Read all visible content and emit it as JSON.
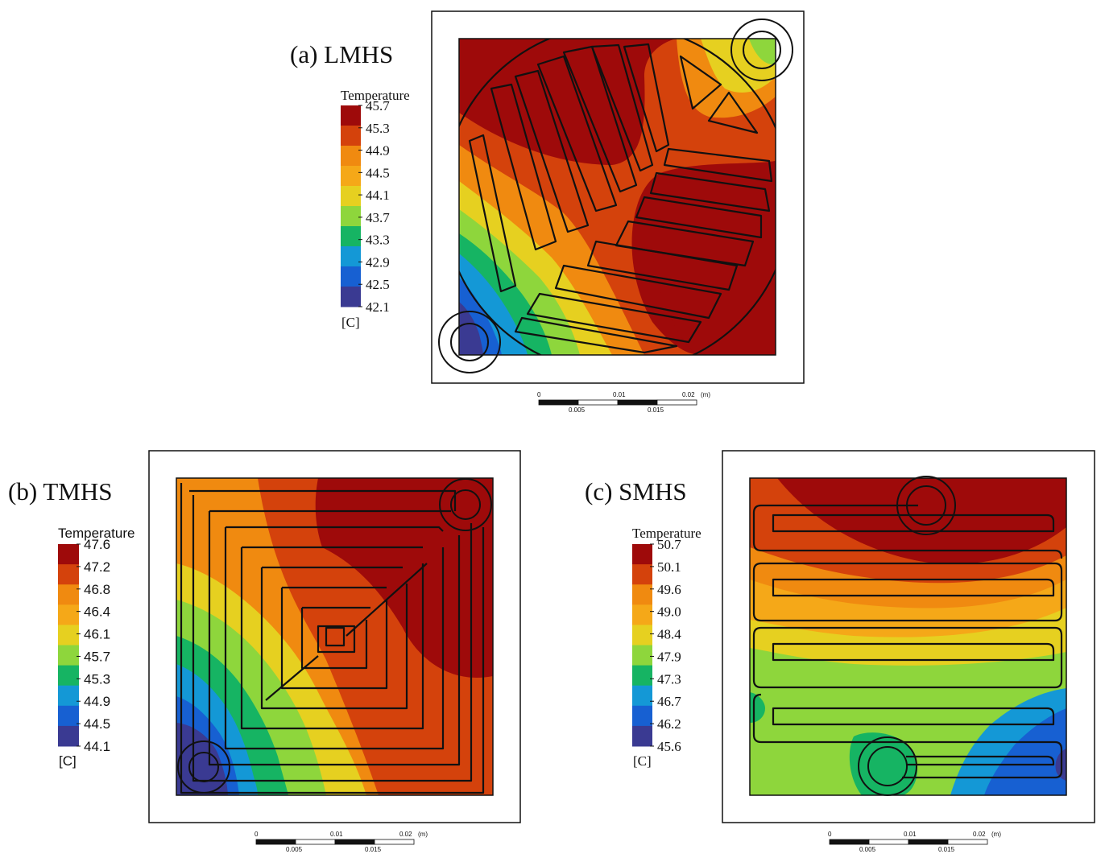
{
  "panels": [
    {
      "id": "a",
      "title": "(a) LMHS",
      "colorbar": {
        "title": "Temperature",
        "unit": "[C]",
        "ticks": [
          "45.7",
          "45.3",
          "44.9",
          "44.5",
          "44.1",
          "43.7",
          "43.3",
          "42.9",
          "42.5",
          "42.1"
        ]
      }
    },
    {
      "id": "b",
      "title": "(b) TMHS",
      "colorbar": {
        "title": "Temperature",
        "unit": "[C]",
        "ticks": [
          "47.6",
          "47.2",
          "46.8",
          "46.4",
          "46.1",
          "45.7",
          "45.3",
          "44.9",
          "44.5",
          "44.1"
        ]
      }
    },
    {
      "id": "c",
      "title": "(c) SMHS",
      "colorbar": {
        "title": "Temperature",
        "unit": "[C]",
        "ticks": [
          "50.7",
          "50.1",
          "49.6",
          "49.0",
          "48.4",
          "47.9",
          "47.3",
          "46.7",
          "46.2",
          "45.6"
        ]
      }
    }
  ],
  "scalebar": {
    "top": [
      "0",
      "0.01",
      "0.02",
      "(m)"
    ],
    "bottom": [
      "0.005",
      "0.015"
    ]
  },
  "palette": [
    "#9e0a0a",
    "#d4420c",
    "#f08a10",
    "#f5a818",
    "#e6d020",
    "#8ed63c",
    "#16b463",
    "#1498d6",
    "#1760d2",
    "#3a3a92"
  ]
}
